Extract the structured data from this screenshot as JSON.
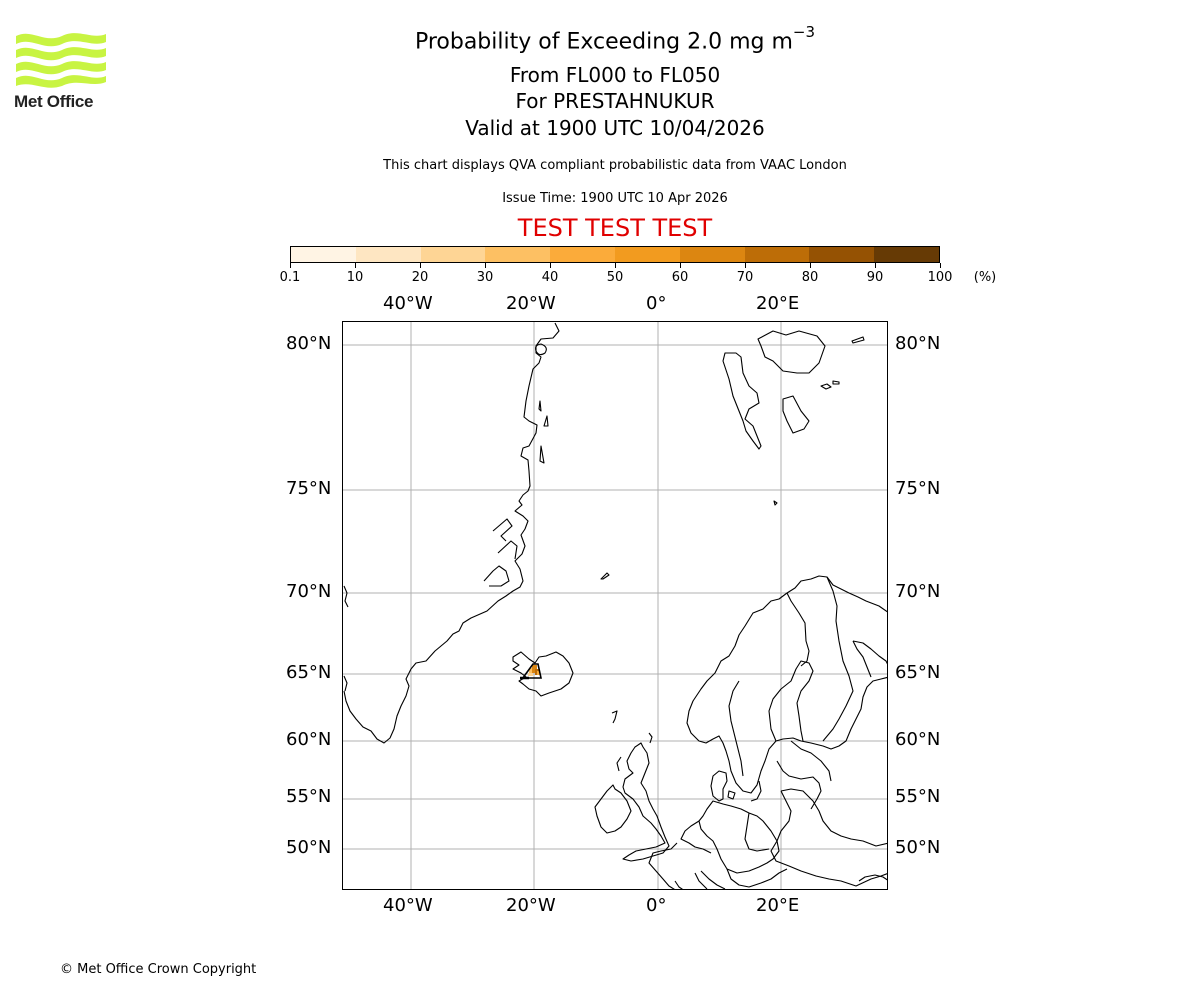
{
  "logo": {
    "text": "Met Office",
    "color": "#c8f442"
  },
  "header": {
    "title_main": "Probability of Exceeding 2.0 mg m",
    "title_sup": "−3",
    "level_range": "From FL000 to FL050",
    "volcano": "For PRESTAHNUKUR",
    "valid_time": "Valid at 1900 UTC 10/04/2026",
    "description": "This chart displays QVA compliant probabilistic data from VAAC London",
    "issue_time": "Issue Time: 1900 UTC 10 Apr 2026",
    "test_banner": "TEST TEST TEST",
    "test_color": "#e00000"
  },
  "colorbar": {
    "unit_label": "(%)",
    "ticks": [
      "0.1",
      "10",
      "20",
      "30",
      "40",
      "50",
      "60",
      "70",
      "80",
      "90",
      "100"
    ],
    "colors": [
      "#fff4e4",
      "#fee6c2",
      "#fed595",
      "#fdc063",
      "#fbab3a",
      "#f29b1f",
      "#dc8611",
      "#bd6d07",
      "#955203",
      "#663a05"
    ]
  },
  "map": {
    "lon_labels": [
      "40°W",
      "20°W",
      "0°",
      "20°E"
    ],
    "lat_labels": [
      "80°N",
      "75°N",
      "70°N",
      "65°N",
      "60°N",
      "55°N",
      "50°N"
    ],
    "grid_color": "#b0b0b0",
    "ash_location": "Iceland (Prestahnukur)"
  },
  "footer": {
    "copyright": "© Met Office Crown Copyright"
  },
  "chart_data": {
    "type": "heatmap",
    "title": "Probability of Exceeding 2.0 mg m−3",
    "subtitle": [
      "From FL000 to FL050",
      "For PRESTAHNUKUR",
      "Valid at 1900 UTC 10/04/2026"
    ],
    "colorbar": {
      "bins": [
        0.1,
        10,
        20,
        30,
        40,
        50,
        60,
        70,
        80,
        90,
        100
      ],
      "unit": "%"
    },
    "x_ticks": [
      "40°W",
      "20°W",
      "0°",
      "20°E"
    ],
    "y_ticks": [
      "80°N",
      "75°N",
      "70°N",
      "65°N",
      "60°N",
      "55°N",
      "50°N"
    ],
    "grid": true,
    "features": [
      {
        "location": "SW Iceland near 20°W 64.5°N",
        "probability_range": "30-70%"
      }
    ]
  }
}
